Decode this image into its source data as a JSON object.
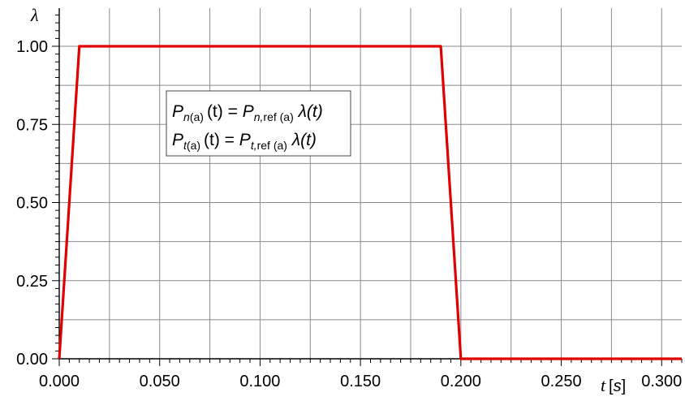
{
  "chart_data": {
    "type": "line",
    "xlabel": "t",
    "xlabel_unit": "s",
    "ylabel": "λ",
    "xlim": [
      0,
      0.31
    ],
    "ylim": [
      0,
      1.0
    ],
    "x_ticks": [
      0.0,
      0.05,
      0.1,
      0.15,
      0.2,
      0.25,
      0.3
    ],
    "x_tick_labels": [
      "0.000",
      "0.050",
      "0.100",
      "0.150",
      "0.200",
      "0.250",
      "0.300"
    ],
    "y_ticks": [
      0.0,
      0.25,
      0.5,
      0.75,
      1.0
    ],
    "y_tick_labels": [
      "0.00",
      "0.25",
      "0.50",
      "0.75",
      "1.00"
    ],
    "grid": true,
    "series": [
      {
        "color": "#e00000",
        "points": [
          [
            0.0,
            0.0
          ],
          [
            0.01,
            1.0
          ],
          [
            0.19,
            1.0
          ],
          [
            0.2,
            0.0
          ],
          [
            0.31,
            0.0
          ]
        ]
      }
    ],
    "annotation": {
      "line1": {
        "P1": "P",
        "sub1": "n",
        "sub1b": "(a)",
        "lhs_arg": "(t) = ",
        "P2": "P",
        "sub2": "n,",
        "sub2b": "ref (a)",
        "lam": " λ(t)"
      },
      "line2": {
        "P1": "P",
        "sub1": "t",
        "sub1b": "(a)",
        "lhs_arg": "(t) = ",
        "P2": "P",
        "sub2": "t,",
        "sub2b": "ref (a)",
        "lam": " λ(t)"
      }
    }
  }
}
